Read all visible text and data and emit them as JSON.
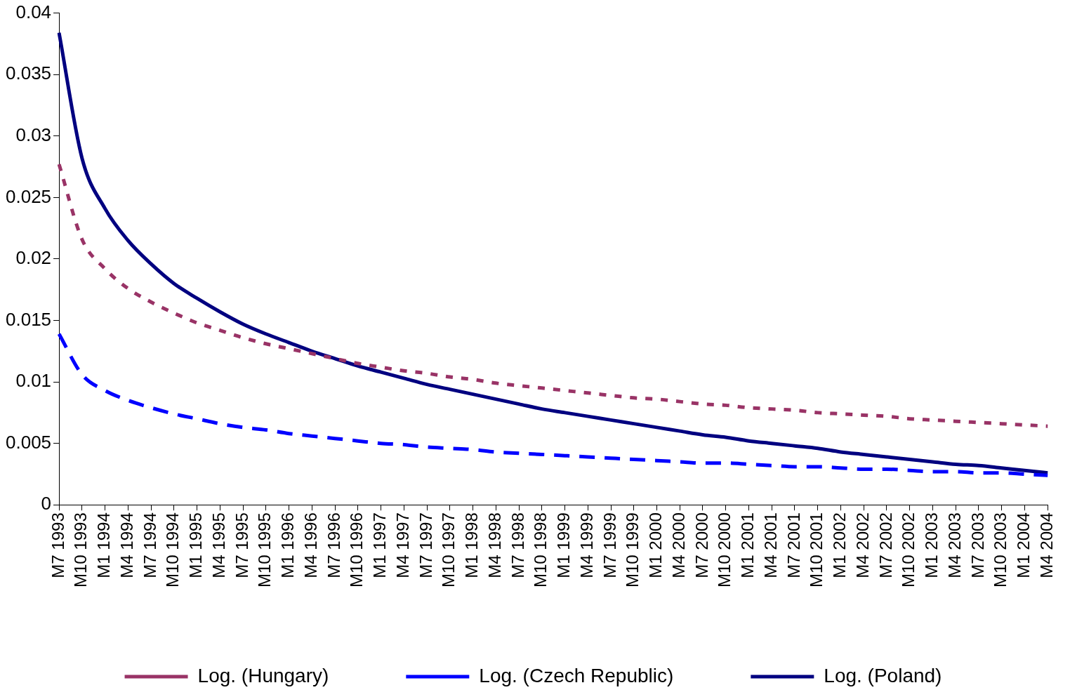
{
  "chart_data": {
    "type": "line",
    "categories": [
      "M7 1993",
      "M10 1993",
      "M1 1994",
      "M4 1994",
      "M7 1994",
      "M10 1994",
      "M1 1995",
      "M4 1995",
      "M7 1995",
      "M10 1995",
      "M1 1996",
      "M4 1996",
      "M7 1996",
      "M10 1996",
      "M1 1997",
      "M4 1997",
      "M7 1997",
      "M10 1997",
      "M1 1998",
      "M4 1998",
      "M7 1998",
      "M10 1998",
      "M1 1999",
      "M4 1999",
      "M7 1999",
      "M10 1999",
      "M1 2000",
      "M4 2000",
      "M7 2000",
      "M10 2000",
      "M1 2001",
      "M4 2001",
      "M7 2001",
      "M10 2001",
      "M1 2002",
      "M4 2002",
      "M7 2002",
      "M10 2002",
      "M1 2003",
      "M4 2003",
      "M7 2003",
      "M10 2003",
      "M1 2004",
      "M4 2004"
    ],
    "series": [
      {
        "name": "Log. (Hungary)",
        "color": "#993366",
        "line_style": "dotted",
        "values": [
          0.0277,
          0.0216,
          0.0192,
          0.0176,
          0.0165,
          0.0156,
          0.0148,
          0.0142,
          0.0136,
          0.0131,
          0.0127,
          0.0123,
          0.0119,
          0.0115,
          0.0112,
          0.0109,
          0.0107,
          0.0104,
          0.0102,
          0.0099,
          0.0097,
          0.0095,
          0.0093,
          0.0091,
          0.0089,
          0.0087,
          0.0086,
          0.0084,
          0.0082,
          0.0081,
          0.0079,
          0.0078,
          0.0077,
          0.0075,
          0.0074,
          0.0073,
          0.0072,
          0.007,
          0.0069,
          0.0068,
          0.0067,
          0.0066,
          0.0065,
          0.0064
        ]
      },
      {
        "name": "Log. (Czech Republic)",
        "color": "#0000ff",
        "line_style": "dashed",
        "values": [
          0.0139,
          0.0106,
          0.0093,
          0.0085,
          0.0079,
          0.0074,
          0.007,
          0.0066,
          0.0063,
          0.0061,
          0.0058,
          0.0056,
          0.0054,
          0.0052,
          0.005,
          0.0049,
          0.0047,
          0.0046,
          0.0045,
          0.0043,
          0.0042,
          0.0041,
          0.004,
          0.0039,
          0.0038,
          0.0037,
          0.0036,
          0.0035,
          0.0034,
          0.0034,
          0.0033,
          0.0032,
          0.0031,
          0.0031,
          0.003,
          0.0029,
          0.0029,
          0.0028,
          0.0027,
          0.0027,
          0.0026,
          0.0026,
          0.0025,
          0.0024
        ]
      },
      {
        "name": "Log. (Poland)",
        "color": "#000080",
        "line_style": "solid",
        "values": [
          0.0384,
          0.0282,
          0.0241,
          0.0215,
          0.0196,
          0.018,
          0.0168,
          0.0157,
          0.0147,
          0.0139,
          0.0132,
          0.0125,
          0.0119,
          0.0113,
          0.0108,
          0.0103,
          0.0098,
          0.0094,
          0.009,
          0.0086,
          0.0082,
          0.0078,
          0.0075,
          0.0072,
          0.0069,
          0.0066,
          0.0063,
          0.006,
          0.0057,
          0.0055,
          0.0052,
          0.005,
          0.0048,
          0.0046,
          0.0043,
          0.0041,
          0.0039,
          0.0037,
          0.0035,
          0.0033,
          0.0032,
          0.003,
          0.0028,
          0.0026
        ]
      }
    ],
    "ylim": [
      0,
      0.04
    ],
    "yticks": [
      0,
      0.005,
      0.01,
      0.015,
      0.02,
      0.025,
      0.03,
      0.035,
      0.04
    ],
    "grid": false,
    "legend": "bottom",
    "marker": "none"
  }
}
